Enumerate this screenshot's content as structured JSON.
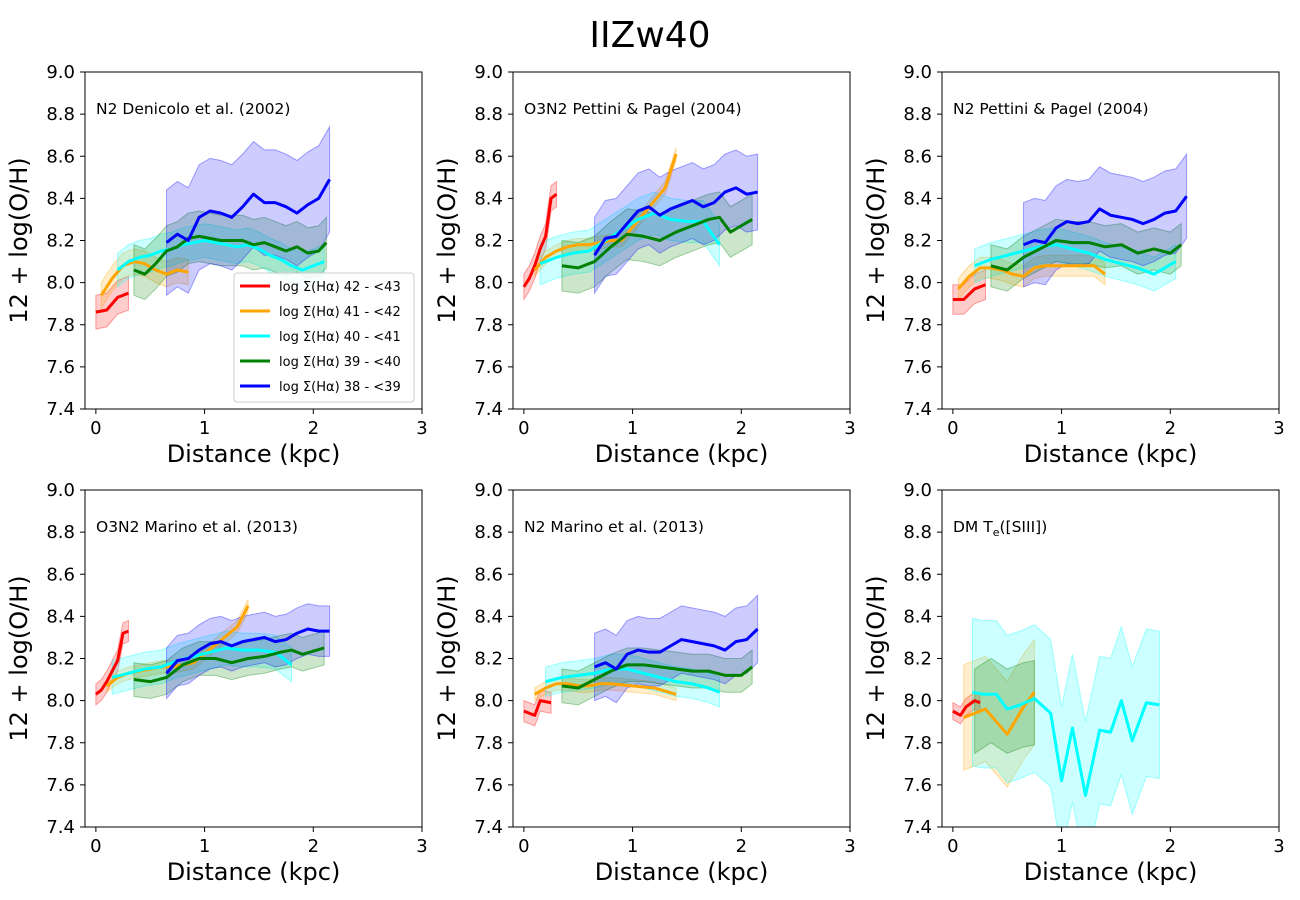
{
  "figure": {
    "title": "IIZw40"
  },
  "colors": {
    "b42": "#ff0000",
    "b41": "#ffa500",
    "b40": "#00ffff",
    "b39": "#008000",
    "b38": "#0000ff"
  },
  "legend": {
    "placement": "lower-right of first panel",
    "entries": [
      {
        "key": "b42",
        "label": "log Σ(Hα) 42 - <43"
      },
      {
        "key": "b41",
        "label": "log Σ(Hα) 41 - <42"
      },
      {
        "key": "b40",
        "label": "log Σ(Hα) 40 - <41"
      },
      {
        "key": "b39",
        "label": "log Σ(Hα) 39 - <40"
      },
      {
        "key": "b38",
        "label": "log Σ(Hα) 38 - <39"
      }
    ]
  },
  "chart_data": [
    {
      "type": "line",
      "panel_label": "N2 Denicolo et al. (2002)",
      "xlabel": "Distance (kpc)",
      "ylabel": "12 + log(O/H)",
      "xlim": [
        -0.1,
        3.0
      ],
      "ylim": [
        7.4,
        9.0
      ],
      "xticks": [
        "0",
        "1",
        "2",
        "3"
      ],
      "yticks": [
        "7.4",
        "7.6",
        "7.8",
        "8.0",
        "8.2",
        "8.4",
        "8.6",
        "8.8",
        "9.0"
      ],
      "series": [
        {
          "key": "b42",
          "x": [
            0.0,
            0.1,
            0.2,
            0.3
          ],
          "y": [
            7.86,
            7.87,
            7.93,
            7.95
          ],
          "band": 0.08
        },
        {
          "key": "b41",
          "x": [
            0.05,
            0.15,
            0.25,
            0.35,
            0.45,
            0.55,
            0.65,
            0.75,
            0.85
          ],
          "y": [
            7.94,
            8.02,
            8.08,
            8.1,
            8.09,
            8.06,
            8.04,
            8.06,
            8.05
          ],
          "band": 0.06
        },
        {
          "key": "b40",
          "x": [
            0.2,
            0.3,
            0.4,
            0.5,
            0.6,
            0.7,
            0.8,
            0.9,
            1.0,
            1.1,
            1.2,
            1.3,
            1.4,
            1.5,
            1.6,
            1.7,
            1.8,
            1.9,
            2.0,
            2.1
          ],
          "y": [
            8.06,
            8.1,
            8.12,
            8.13,
            8.15,
            8.16,
            8.18,
            8.19,
            8.2,
            8.19,
            8.18,
            8.17,
            8.18,
            8.16,
            8.13,
            8.11,
            8.08,
            8.06,
            8.08,
            8.1
          ],
          "band": 0.08
        },
        {
          "key": "b39",
          "x": [
            0.35,
            0.45,
            0.55,
            0.65,
            0.75,
            0.85,
            0.95,
            1.05,
            1.15,
            1.25,
            1.35,
            1.45,
            1.55,
            1.65,
            1.75,
            1.85,
            1.95,
            2.05,
            2.12
          ],
          "y": [
            8.06,
            8.04,
            8.09,
            8.15,
            8.17,
            8.21,
            8.22,
            8.21,
            8.2,
            8.2,
            8.2,
            8.18,
            8.19,
            8.17,
            8.15,
            8.17,
            8.14,
            8.15,
            8.19
          ],
          "band": 0.12
        },
        {
          "key": "b38",
          "x": [
            0.65,
            0.75,
            0.85,
            0.95,
            1.05,
            1.15,
            1.25,
            1.35,
            1.45,
            1.55,
            1.65,
            1.75,
            1.85,
            1.95,
            2.05,
            2.15
          ],
          "y": [
            8.19,
            8.23,
            8.2,
            8.31,
            8.34,
            8.33,
            8.31,
            8.36,
            8.42,
            8.38,
            8.38,
            8.36,
            8.33,
            8.37,
            8.4,
            8.49
          ],
          "band": 0.25
        }
      ]
    },
    {
      "type": "line",
      "panel_label": "O3N2 Pettini & Pagel (2004)",
      "xlabel": "Distance (kpc)",
      "ylabel": "12 + log(O/H)",
      "xlim": [
        -0.1,
        3.0
      ],
      "ylim": [
        7.4,
        9.0
      ],
      "xticks": [
        "0",
        "1",
        "2",
        "3"
      ],
      "yticks": [
        "7.4",
        "7.6",
        "7.8",
        "8.0",
        "8.2",
        "8.4",
        "8.6",
        "8.8",
        "9.0"
      ],
      "series": [
        {
          "key": "b42",
          "x": [
            0.0,
            0.05,
            0.1,
            0.15,
            0.2,
            0.25,
            0.3
          ],
          "y": [
            7.98,
            8.02,
            8.08,
            8.16,
            8.22,
            8.4,
            8.42
          ],
          "band": 0.06
        },
        {
          "key": "b41",
          "x": [
            0.1,
            0.2,
            0.3,
            0.4,
            0.5,
            0.6,
            0.7,
            0.8,
            0.9,
            1.3,
            1.4
          ],
          "y": [
            8.06,
            8.12,
            8.15,
            8.17,
            8.18,
            8.18,
            8.19,
            8.2,
            8.2,
            8.45,
            8.61
          ],
          "band": 0.03
        },
        {
          "key": "b40",
          "x": [
            0.15,
            0.3,
            0.45,
            0.6,
            0.75,
            0.9,
            1.05,
            1.2,
            1.35,
            1.5,
            1.65,
            1.8
          ],
          "y": [
            8.09,
            8.12,
            8.14,
            8.15,
            8.2,
            8.25,
            8.3,
            8.33,
            8.3,
            8.29,
            8.29,
            8.18
          ],
          "band": 0.1
        },
        {
          "key": "b39",
          "x": [
            0.35,
            0.5,
            0.65,
            0.8,
            0.95,
            1.1,
            1.25,
            1.4,
            1.55,
            1.7,
            1.8,
            1.9,
            2.1
          ],
          "y": [
            8.08,
            8.07,
            8.1,
            8.17,
            8.23,
            8.22,
            8.2,
            8.24,
            8.27,
            8.3,
            8.31,
            8.24,
            8.3
          ],
          "band": 0.12
        },
        {
          "key": "b38",
          "x": [
            0.65,
            0.75,
            0.85,
            0.95,
            1.05,
            1.15,
            1.25,
            1.35,
            1.45,
            1.55,
            1.65,
            1.75,
            1.85,
            1.95,
            2.05,
            2.15
          ],
          "y": [
            8.13,
            8.21,
            8.22,
            8.28,
            8.34,
            8.36,
            8.32,
            8.35,
            8.37,
            8.39,
            8.36,
            8.38,
            8.43,
            8.45,
            8.42,
            8.43
          ],
          "band": 0.18
        }
      ]
    },
    {
      "type": "line",
      "panel_label": "N2 Pettini & Pagel (2004)",
      "xlabel": "Distance (kpc)",
      "ylabel": "12 + log(O/H)",
      "xlim": [
        -0.1,
        3.0
      ],
      "ylim": [
        7.4,
        9.0
      ],
      "xticks": [
        "0",
        "1",
        "2",
        "3"
      ],
      "yticks": [
        "7.4",
        "7.6",
        "7.8",
        "8.0",
        "8.2",
        "8.4",
        "8.6",
        "8.8",
        "9.0"
      ],
      "series": [
        {
          "key": "b42",
          "x": [
            0.0,
            0.1,
            0.2,
            0.3
          ],
          "y": [
            7.92,
            7.92,
            7.97,
            7.99
          ],
          "band": 0.07
        },
        {
          "key": "b41",
          "x": [
            0.05,
            0.15,
            0.25,
            0.35,
            0.45,
            0.55,
            0.65,
            0.75,
            0.85,
            1.3,
            1.4
          ],
          "y": [
            7.97,
            8.03,
            8.07,
            8.07,
            8.06,
            8.04,
            8.03,
            8.07,
            8.08,
            8.08,
            8.04
          ],
          "band": 0.05
        },
        {
          "key": "b40",
          "x": [
            0.2,
            0.35,
            0.5,
            0.65,
            0.8,
            0.95,
            1.1,
            1.25,
            1.4,
            1.55,
            1.7,
            1.85,
            2.05
          ],
          "y": [
            8.08,
            8.11,
            8.13,
            8.15,
            8.17,
            8.18,
            8.16,
            8.14,
            8.11,
            8.09,
            8.07,
            8.04,
            8.1
          ],
          "band": 0.08
        },
        {
          "key": "b39",
          "x": [
            0.35,
            0.5,
            0.65,
            0.8,
            0.95,
            1.1,
            1.25,
            1.4,
            1.55,
            1.7,
            1.85,
            2.0,
            2.1
          ],
          "y": [
            8.08,
            8.06,
            8.12,
            8.16,
            8.2,
            8.19,
            8.19,
            8.17,
            8.18,
            8.14,
            8.16,
            8.14,
            8.18
          ],
          "band": 0.1
        },
        {
          "key": "b38",
          "x": [
            0.65,
            0.75,
            0.85,
            0.95,
            1.05,
            1.15,
            1.25,
            1.35,
            1.45,
            1.55,
            1.65,
            1.75,
            1.85,
            1.95,
            2.05,
            2.15
          ],
          "y": [
            8.18,
            8.2,
            8.19,
            8.26,
            8.29,
            8.28,
            8.29,
            8.35,
            8.32,
            8.31,
            8.3,
            8.28,
            8.3,
            8.33,
            8.34,
            8.41
          ],
          "band": 0.2
        }
      ]
    },
    {
      "type": "line",
      "panel_label": "O3N2 Marino et al. (2013)",
      "xlabel": "Distance (kpc)",
      "ylabel": "12 + log(O/H)",
      "xlim": [
        -0.1,
        3.0
      ],
      "ylim": [
        7.4,
        9.0
      ],
      "xticks": [
        "0",
        "1",
        "2",
        "3"
      ],
      "yticks": [
        "7.4",
        "7.6",
        "7.8",
        "8.0",
        "8.2",
        "8.4",
        "8.6",
        "8.8",
        "9.0"
      ],
      "series": [
        {
          "key": "b42",
          "x": [
            0.0,
            0.05,
            0.1,
            0.15,
            0.2,
            0.25,
            0.3
          ],
          "y": [
            8.03,
            8.05,
            8.09,
            8.14,
            8.19,
            8.32,
            8.33
          ],
          "band": 0.05
        },
        {
          "key": "b41",
          "x": [
            0.1,
            0.2,
            0.3,
            0.4,
            0.5,
            0.6,
            0.7,
            0.8,
            0.9,
            1.3,
            1.4
          ],
          "y": [
            8.07,
            8.11,
            8.13,
            8.14,
            8.15,
            8.16,
            8.16,
            8.17,
            8.18,
            8.35,
            8.45
          ],
          "band": 0.03
        },
        {
          "key": "b40",
          "x": [
            0.15,
            0.3,
            0.45,
            0.6,
            0.75,
            0.9,
            1.05,
            1.2,
            1.35,
            1.5,
            1.65,
            1.8
          ],
          "y": [
            8.11,
            8.13,
            8.15,
            8.16,
            8.19,
            8.21,
            8.23,
            8.25,
            8.24,
            8.24,
            8.23,
            8.17
          ],
          "band": 0.08
        },
        {
          "key": "b39",
          "x": [
            0.35,
            0.5,
            0.65,
            0.8,
            0.95,
            1.1,
            1.25,
            1.4,
            1.55,
            1.7,
            1.8,
            1.9,
            2.1
          ],
          "y": [
            8.1,
            8.09,
            8.11,
            8.17,
            8.2,
            8.2,
            8.18,
            8.2,
            8.21,
            8.23,
            8.24,
            8.22,
            8.25
          ],
          "band": 0.08
        },
        {
          "key": "b38",
          "x": [
            0.65,
            0.75,
            0.85,
            0.95,
            1.05,
            1.15,
            1.25,
            1.35,
            1.45,
            1.55,
            1.65,
            1.75,
            1.85,
            1.95,
            2.05,
            2.15
          ],
          "y": [
            8.13,
            8.19,
            8.2,
            8.24,
            8.27,
            8.28,
            8.26,
            8.28,
            8.29,
            8.3,
            8.28,
            8.29,
            8.32,
            8.34,
            8.33,
            8.33
          ],
          "band": 0.12
        }
      ]
    },
    {
      "type": "line",
      "panel_label": "N2 Marino et al. (2013)",
      "xlabel": "Distance (kpc)",
      "ylabel": "12 + log(O/H)",
      "xlim": [
        -0.1,
        3.0
      ],
      "ylim": [
        7.4,
        9.0
      ],
      "xticks": [
        "0",
        "1",
        "2",
        "3"
      ],
      "yticks": [
        "7.4",
        "7.6",
        "7.8",
        "8.0",
        "8.2",
        "8.4",
        "8.6",
        "8.8",
        "9.0"
      ],
      "series": [
        {
          "key": "b42",
          "x": [
            0.0,
            0.1,
            0.15,
            0.25
          ],
          "y": [
            7.95,
            7.93,
            8.0,
            7.99
          ],
          "band": 0.05
        },
        {
          "key": "b41",
          "x": [
            0.1,
            0.2,
            0.3,
            0.4,
            0.5,
            0.6,
            0.7,
            0.8,
            1.2,
            1.4
          ],
          "y": [
            8.03,
            8.06,
            8.08,
            8.08,
            8.07,
            8.07,
            8.08,
            8.08,
            8.06,
            8.03
          ],
          "band": 0.03
        },
        {
          "key": "b40",
          "x": [
            0.2,
            0.35,
            0.5,
            0.65,
            0.8,
            0.95,
            1.1,
            1.25,
            1.4,
            1.55,
            1.7,
            1.8
          ],
          "y": [
            8.09,
            8.11,
            8.12,
            8.13,
            8.15,
            8.15,
            8.13,
            8.11,
            8.09,
            8.08,
            8.06,
            8.04
          ],
          "band": 0.07
        },
        {
          "key": "b39",
          "x": [
            0.35,
            0.5,
            0.65,
            0.8,
            0.95,
            1.1,
            1.25,
            1.4,
            1.55,
            1.7,
            1.85,
            2.0,
            2.1
          ],
          "y": [
            8.07,
            8.06,
            8.1,
            8.14,
            8.17,
            8.17,
            8.16,
            8.15,
            8.14,
            8.14,
            8.12,
            8.12,
            8.16
          ],
          "band": 0.08
        },
        {
          "key": "b38",
          "x": [
            0.65,
            0.75,
            0.85,
            0.95,
            1.05,
            1.15,
            1.25,
            1.35,
            1.45,
            1.55,
            1.65,
            1.75,
            1.85,
            1.95,
            2.05,
            2.15
          ],
          "y": [
            8.16,
            8.18,
            8.15,
            8.22,
            8.24,
            8.23,
            8.23,
            8.26,
            8.29,
            8.28,
            8.27,
            8.26,
            8.24,
            8.28,
            8.29,
            8.34
          ],
          "band": 0.16
        }
      ]
    },
    {
      "type": "line",
      "panel_label": "DM T$_e$([SIII])",
      "panel_label_parts": {
        "prefix": "DM T",
        "subscript": "e",
        "suffix": "([SIII])"
      },
      "xlabel": "Distance (kpc)",
      "ylabel": "12 + log(O/H)",
      "xlim": [
        -0.1,
        3.0
      ],
      "ylim": [
        7.4,
        9.0
      ],
      "xticks": [
        "0",
        "1",
        "2",
        "3"
      ],
      "yticks": [
        "7.4",
        "7.6",
        "7.8",
        "8.0",
        "8.2",
        "8.4",
        "8.6",
        "8.8",
        "9.0"
      ],
      "series": [
        {
          "key": "b42",
          "x": [
            0.0,
            0.07,
            0.12,
            0.2,
            0.25
          ],
          "y": [
            7.95,
            7.93,
            7.97,
            8.0,
            7.99
          ],
          "band": 0.04
        },
        {
          "key": "b41",
          "x": [
            0.1,
            0.3,
            0.5,
            0.65,
            0.75
          ],
          "y": [
            7.92,
            7.96,
            7.84,
            7.97,
            8.04
          ],
          "band": 0.25
        },
        {
          "key": "b40",
          "x": [
            0.18,
            0.28,
            0.4,
            0.5,
            0.62,
            0.75,
            0.9,
            1.0,
            1.1,
            1.22,
            1.35,
            1.45,
            1.55,
            1.65,
            1.78,
            1.9
          ],
          "y": [
            8.04,
            8.03,
            8.03,
            7.96,
            7.98,
            8.01,
            7.94,
            7.62,
            7.87,
            7.55,
            7.86,
            7.85,
            8.0,
            7.81,
            7.99,
            7.98
          ],
          "band": 0.35
        },
        {
          "key": "b39",
          "x": [
            0.2,
            0.35,
            0.5,
            0.65,
            0.75
          ],
          "y": [
            7.95,
            8.0,
            7.95,
            7.98,
            7.99
          ],
          "band": 0.2,
          "line": false
        }
      ]
    }
  ]
}
